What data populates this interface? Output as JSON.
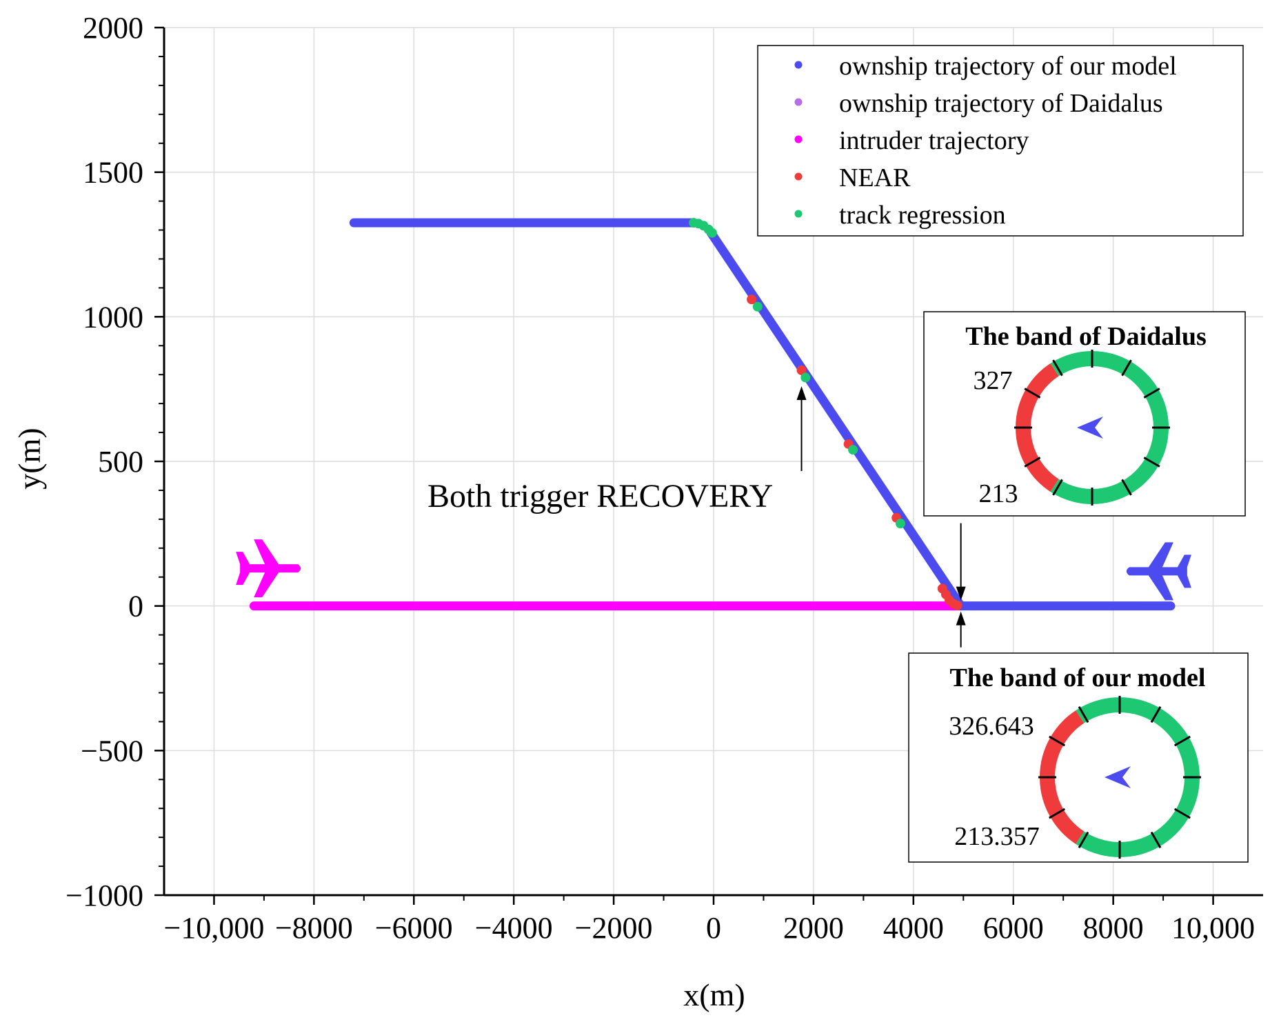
{
  "chart_data": {
    "type": "scatter",
    "xlabel": "x(m)",
    "ylabel": "y(m)",
    "xlim": [
      -11000,
      11000
    ],
    "ylim": [
      -1000,
      2000
    ],
    "xticks": [
      -10000,
      -8000,
      -6000,
      -4000,
      -2000,
      0,
      2000,
      4000,
      6000,
      8000,
      10000
    ],
    "xtick_labels": [
      "−10,000",
      "−8000",
      "−6000",
      "−4000",
      "−2000",
      "0",
      "2000",
      "4000",
      "6000",
      "8000",
      "10,000"
    ],
    "yticks": [
      -1000,
      -500,
      0,
      500,
      1000,
      1500,
      2000
    ],
    "ytick_labels": [
      "−1000",
      "−500",
      "0",
      "500",
      "1000",
      "1500",
      "2000"
    ],
    "grid": true,
    "legend_position": "top-right",
    "colors": {
      "ownship_model": "#4b4bef",
      "ownship_daidalus": "#b46ee6",
      "intruder": "#ff00ff",
      "near": "#ef3b3b",
      "track_regression": "#1ec873"
    },
    "series": [
      {
        "name": "ownship trajectory of our model",
        "color": "#4b4bef",
        "segments": [
          {
            "x": [
              -7200,
              -400
            ],
            "y": [
              1325,
              1325
            ]
          },
          {
            "x": [
              -50,
              4950
            ],
            "y": [
              1290,
              0
            ]
          },
          {
            "x": [
              5000,
              9150
            ],
            "y": [
              0,
              0
            ]
          }
        ]
      },
      {
        "name": "ownship trajectory of Daidalus",
        "color": "#b46ee6",
        "segments": []
      },
      {
        "name": "intruder trajectory",
        "color": "#ff00ff",
        "segments": [
          {
            "x": [
              -9200,
              4980
            ],
            "y": [
              0,
              0
            ]
          }
        ]
      },
      {
        "name": "NEAR",
        "color": "#ef3b3b",
        "points": [
          {
            "x": 760,
            "y": 1060
          },
          {
            "x": 1760,
            "y": 815
          },
          {
            "x": 2700,
            "y": 560
          },
          {
            "x": 3660,
            "y": 305
          },
          {
            "x": 4580,
            "y": 60
          },
          {
            "x": 4650,
            "y": 40
          },
          {
            "x": 4720,
            "y": 20
          },
          {
            "x": 4800,
            "y": 8
          },
          {
            "x": 4880,
            "y": 2
          }
        ]
      },
      {
        "name": "track regression",
        "color": "#1ec873",
        "points": [
          {
            "x": -400,
            "y": 1325
          },
          {
            "x": -300,
            "y": 1322
          },
          {
            "x": -200,
            "y": 1315
          },
          {
            "x": -100,
            "y": 1302
          },
          {
            "x": -30,
            "y": 1290
          },
          {
            "x": 880,
            "y": 1035
          },
          {
            "x": 1840,
            "y": 790
          },
          {
            "x": 2790,
            "y": 540
          },
          {
            "x": 3740,
            "y": 285
          }
        ]
      }
    ],
    "annotations": [
      {
        "text": "Both trigger RECOVERY",
        "arrow_to": {
          "x": 1760,
          "y": 760
        }
      }
    ],
    "icons": [
      {
        "name": "intruder-aircraft-icon",
        "color": "#ff00ff",
        "heading": "east",
        "x": -8900,
        "y": 130
      },
      {
        "name": "ownship-aircraft-icon",
        "color": "#4b4bef",
        "heading": "west",
        "x": 8900,
        "y": 120
      }
    ]
  },
  "insets": [
    {
      "title": "The band of Daidalus",
      "upper_label": "327",
      "lower_label": "213",
      "red_from_deg": 213,
      "red_to_deg": 327
    },
    {
      "title": "The band of our model",
      "upper_label": "326.643",
      "lower_label": "213.357",
      "red_from_deg": 213.357,
      "red_to_deg": 326.643
    }
  ]
}
